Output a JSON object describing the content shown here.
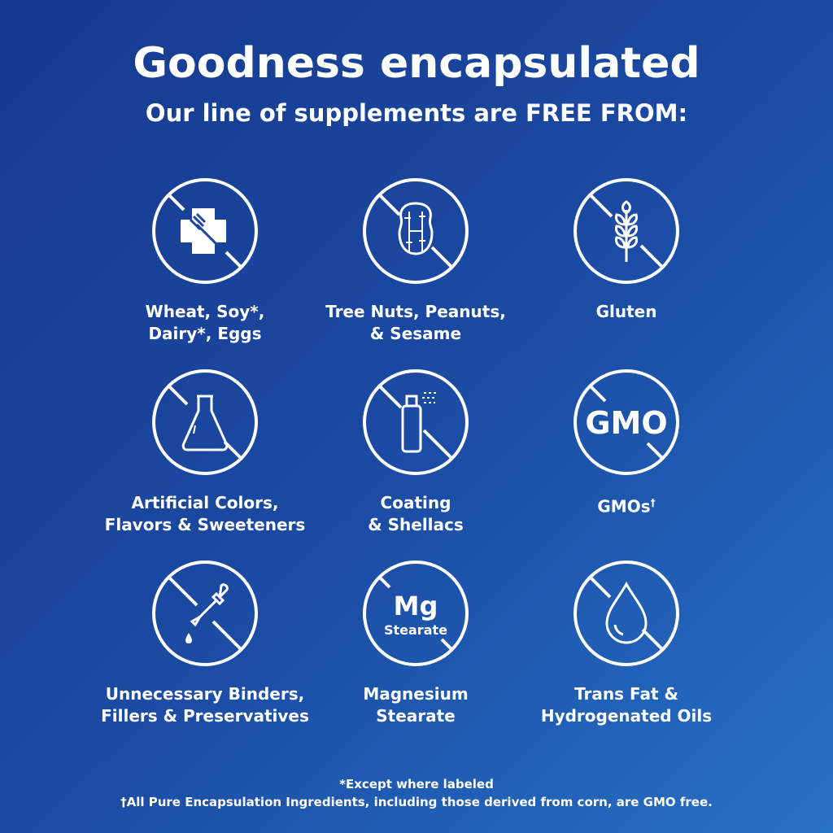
{
  "header": {
    "title": "Goodness encapsulated",
    "subtitle": "Our line of supplements are FREE FROM:"
  },
  "items": [
    {
      "icon": "wheat-soy-dairy-egg-icon",
      "label": "Wheat, Soy*,\nDairy*, Eggs"
    },
    {
      "icon": "peanut-icon",
      "label": "Tree Nuts, Peanuts,\n& Sesame"
    },
    {
      "icon": "wheat-stalk-icon",
      "label": "Gluten"
    },
    {
      "icon": "flask-icon",
      "label": "Artificial Colors,\nFlavors & Sweeteners"
    },
    {
      "icon": "spray-can-icon",
      "label": "Coating\n& Shellacs"
    },
    {
      "icon": "gmo-icon",
      "icon_text": "GMO",
      "label": "GMOs",
      "label_sup": "†"
    },
    {
      "icon": "dropper-icon",
      "label": "Unnecessary Binders,\nFillers & Preservatives"
    },
    {
      "icon": "mg-stearate-icon",
      "icon_text": "Mg",
      "icon_subtext": "Stearate",
      "label": "Magnesium\nStearate"
    },
    {
      "icon": "oil-drop-icon",
      "label": "Trans Fat &\nHydrogenated Oils"
    }
  ],
  "footer": {
    "note1": "*Except where labeled",
    "note2": "†All Pure Encapsulation Ingredients, including those derived from corn, are GMO free."
  },
  "colors": {
    "bg_top": "#17398f",
    "bg_bottom": "#2672c6",
    "foreground": "#ffffff"
  }
}
